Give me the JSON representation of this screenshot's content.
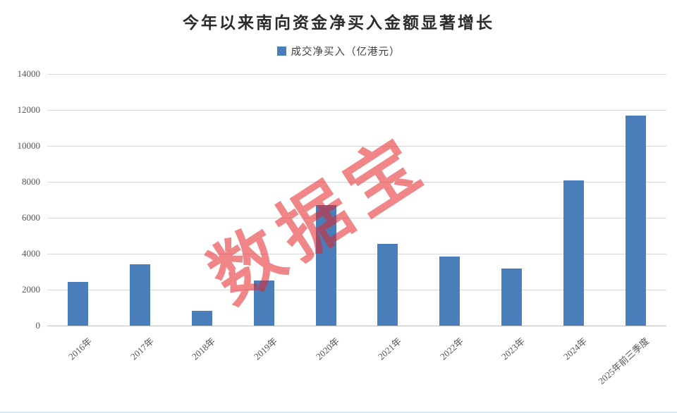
{
  "page": {
    "title": "今年以来南向资金净买入金额显著增长"
  },
  "legend": {
    "label": "成交净买入（亿港元）"
  },
  "watermark": {
    "text": "数据宝"
  },
  "colors": {
    "bar": "#4a7ebb",
    "gridline": "#d9d9d9",
    "axis_line": "#bfbfbf",
    "tick_label": "#555555",
    "title_text": "#2b2b2b",
    "watermark": "rgba(229,35,40,0.55)"
  },
  "chart_data": {
    "type": "bar",
    "title": "今年以来南向资金净买入金额显著增长",
    "legend_entries": [
      "成交净买入（亿港元）"
    ],
    "legend_position": "top-center",
    "categories": [
      "2016年",
      "2017年",
      "2018年",
      "2019年",
      "2020年",
      "2021年",
      "2022年",
      "2023年",
      "2024年",
      "2025年前三季度"
    ],
    "values": [
      2450,
      3400,
      830,
      2500,
      6700,
      4540,
      3860,
      3190,
      8080,
      11700
    ],
    "unit": "亿港元",
    "xlabel": "",
    "ylabel": "",
    "ylim": [
      0,
      14000
    ],
    "ytick_interval": 2000,
    "yticks": [
      0,
      2000,
      4000,
      6000,
      8000,
      10000,
      12000,
      14000
    ],
    "grid": "horizontal"
  }
}
